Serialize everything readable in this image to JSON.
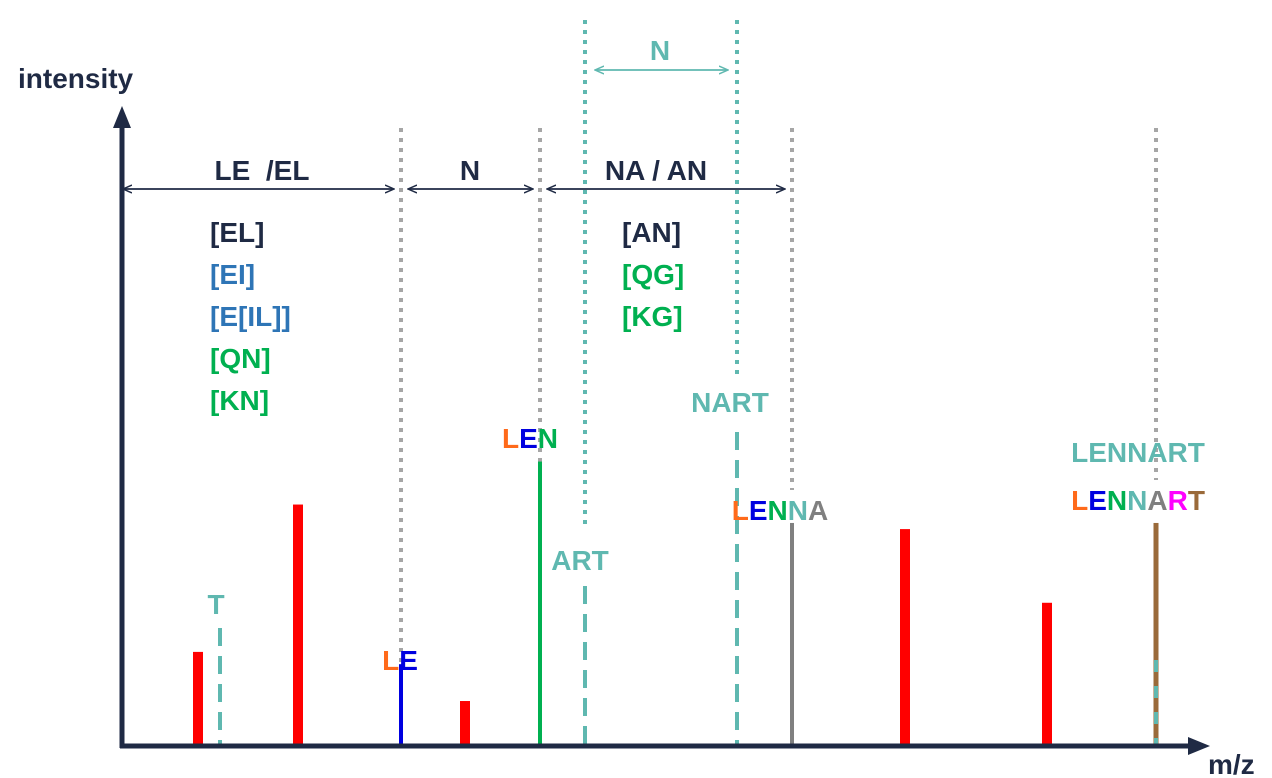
{
  "axes": {
    "y_label": "intensity",
    "x_label": "m/z",
    "color": "#1f2a44"
  },
  "colors": {
    "navy": "#1f2a44",
    "teal": "#5fb8b0",
    "blue_text": "#2e75b6",
    "green": "#00b050",
    "red": "#ff0000",
    "L": "#ff6a1a",
    "E": "#0000e0",
    "N": "#00b050",
    "A": "#808080",
    "R": "#ff00ff",
    "T": "#9a6a3a",
    "grid_dots": "#a6a6a6"
  },
  "ranges": {
    "le_el": {
      "label": "LE  /EL"
    },
    "n": {
      "label": "N"
    },
    "na_an": {
      "label": "NA / AN"
    },
    "n_top": {
      "label": "N"
    }
  },
  "left_list": {
    "items": [
      {
        "text": "[EL]",
        "color": "#1f2a44"
      },
      {
        "text": "[EI]",
        "color": "#2e75b6"
      },
      {
        "text": "[E[IL]]",
        "color": "#2e75b6"
      },
      {
        "text": "[QN]",
        "color": "#00b050"
      },
      {
        "text": "[KN]",
        "color": "#00b050"
      }
    ]
  },
  "right_list": {
    "items": [
      {
        "text": "[AN]",
        "color": "#1f2a44"
      },
      {
        "text": "[QG]",
        "color": "#00b050"
      },
      {
        "text": "[KG]",
        "color": "#00b050"
      }
    ]
  },
  "peaks": {
    "red": [
      0.15,
      0.39,
      0.07,
      0.35,
      0.23
    ],
    "le": {
      "level": 0.13,
      "label": [
        "L",
        "E"
      ]
    },
    "len": {
      "level": 0.46,
      "label": [
        "L",
        "E",
        "N"
      ]
    },
    "lenna": {
      "level": 0.36,
      "label": [
        "L",
        "E",
        "N",
        "N",
        "A"
      ]
    },
    "lennart": {
      "level": 0.36,
      "label": [
        "L",
        "E",
        "N",
        "N",
        "A",
        "R",
        "T"
      ],
      "complement": "LENNART"
    }
  },
  "ion_labels": {
    "t": "T",
    "art": "ART",
    "nart": "NART"
  }
}
